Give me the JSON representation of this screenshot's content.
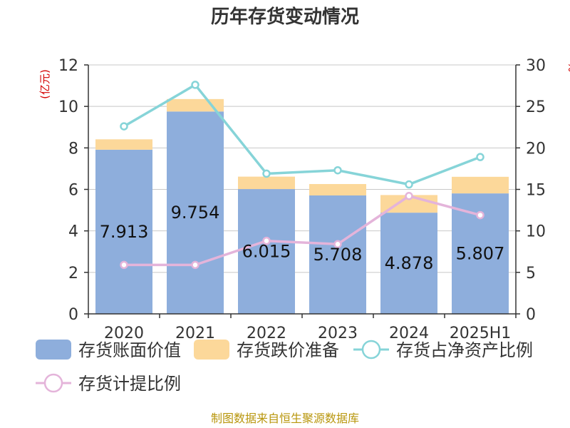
{
  "chart_data": {
    "type": "bar",
    "title": "历年存货变动情况",
    "ylabel_left": "(亿元)",
    "ylabel_right": "%",
    "ylim_left": [
      0,
      12
    ],
    "yticks_left": [
      0,
      2,
      4,
      6,
      8,
      10,
      12
    ],
    "ylim_right": [
      0,
      30
    ],
    "yticks_right": [
      0,
      5,
      10,
      15,
      20,
      25,
      30
    ],
    "categories": [
      "2020",
      "2021",
      "2022",
      "2023",
      "2024",
      "2025H1"
    ],
    "series": [
      {
        "name": "存货账面价值",
        "kind": "bar",
        "axis": "left",
        "color": "#8eaedc",
        "values": [
          7.913,
          9.754,
          6.015,
          5.708,
          4.878,
          5.807
        ],
        "labels": [
          "7.913",
          "9.754",
          "6.015",
          "5.708",
          "4.878",
          "5.807"
        ]
      },
      {
        "name": "存货跌价准备",
        "kind": "bar-stacked",
        "axis": "left",
        "color": "#fcd89a",
        "values": [
          0.5,
          0.6,
          0.6,
          0.55,
          0.85,
          0.8
        ]
      },
      {
        "name": "存货占净资产比例",
        "kind": "line",
        "axis": "right",
        "color": "#86d4d8",
        "values": [
          22.6,
          27.6,
          16.9,
          17.3,
          15.6,
          18.9
        ]
      },
      {
        "name": "存货计提比例",
        "kind": "line",
        "axis": "right",
        "color": "#e4b4da",
        "values": [
          5.9,
          5.9,
          8.8,
          8.4,
          14.2,
          11.9
        ]
      }
    ],
    "grid": true,
    "legend_position": "bottom-left",
    "source": "制图数据来自恒生聚源数据库"
  }
}
